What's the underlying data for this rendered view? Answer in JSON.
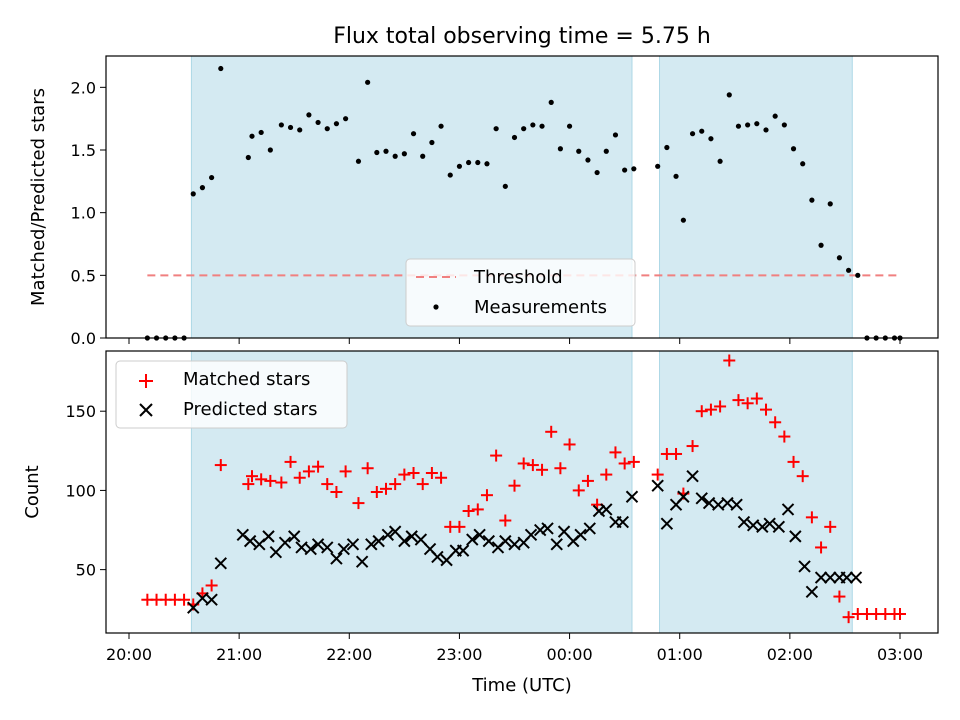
{
  "chart_data": [
    {
      "type": "scatter",
      "title": "Flux total observing time = 5.75 h",
      "ylabel": "Matched/Predicted stars",
      "xlabel": "",
      "ylim": [
        0,
        2.25
      ],
      "yticks": [
        "0.0",
        "0.5",
        "1.0",
        "1.5",
        "2.0"
      ],
      "grid": false,
      "legend_position": "bottom-center",
      "shaded_intervals": [
        [
          "20:34",
          "00:34"
        ],
        [
          "00:49",
          "02:34"
        ]
      ],
      "shade_color": "#add8e6",
      "series": [
        {
          "name": "Threshold",
          "style": "dashed-line",
          "color": "#f08080",
          "x": [
            "20:10",
            "03:00"
          ],
          "y": [
            0.5,
            0.5
          ]
        },
        {
          "name": "Measurements",
          "style": "dot",
          "color": "#000000",
          "x": [
            "20:10",
            "20:15",
            "20:20",
            "20:25",
            "20:30",
            "20:35",
            "20:40",
            "20:45",
            "20:50",
            "21:05",
            "21:07",
            "21:12",
            "21:17",
            "21:23",
            "21:28",
            "21:33",
            "21:38",
            "21:43",
            "21:48",
            "21:53",
            "21:58",
            "22:05",
            "22:10",
            "22:15",
            "22:20",
            "22:25",
            "22:30",
            "22:35",
            "22:40",
            "22:45",
            "22:50",
            "22:55",
            "23:00",
            "23:05",
            "23:10",
            "23:15",
            "23:20",
            "23:25",
            "23:30",
            "23:35",
            "23:40",
            "23:45",
            "23:50",
            "23:55",
            "00:00",
            "00:05",
            "00:10",
            "00:15",
            "00:20",
            "00:25",
            "00:30",
            "00:35",
            "00:48",
            "00:53",
            "00:58",
            "01:02",
            "01:07",
            "01:12",
            "01:17",
            "01:22",
            "01:27",
            "01:32",
            "01:37",
            "01:42",
            "01:47",
            "01:52",
            "01:57",
            "02:02",
            "02:07",
            "02:12",
            "02:17",
            "02:22",
            "02:27",
            "02:32",
            "02:37",
            "02:42",
            "02:47",
            "02:52",
            "02:57",
            "03:00"
          ],
          "y": [
            0,
            0,
            0,
            0,
            0,
            1.15,
            1.2,
            1.28,
            2.15,
            1.44,
            1.61,
            1.64,
            1.5,
            1.7,
            1.68,
            1.66,
            1.78,
            1.72,
            1.67,
            1.71,
            1.75,
            1.41,
            2.04,
            1.48,
            1.49,
            1.45,
            1.47,
            1.63,
            1.45,
            1.56,
            1.69,
            1.3,
            1.37,
            1.4,
            1.4,
            1.39,
            1.67,
            1.21,
            1.6,
            1.67,
            1.7,
            1.69,
            1.88,
            1.51,
            1.69,
            1.49,
            1.42,
            1.32,
            1.49,
            1.62,
            1.34,
            1.35,
            1.37,
            1.52,
            1.29,
            0.94,
            1.63,
            1.65,
            1.59,
            1.41,
            1.94,
            1.69,
            1.7,
            1.71,
            1.66,
            1.77,
            1.7,
            1.51,
            1.39,
            1.1,
            0.74,
            1.07,
            0.64,
            0.54,
            0.5,
            0,
            0,
            0,
            0,
            0
          ]
        }
      ]
    },
    {
      "type": "scatter",
      "title": "",
      "xlabel": "Time (UTC)",
      "ylabel": "Count",
      "ylim": [
        10,
        188
      ],
      "yticks": [
        "50",
        "100",
        "150"
      ],
      "xticks": [
        "20:00",
        "21:00",
        "22:00",
        "23:00",
        "00:00",
        "01:00",
        "02:00",
        "03:00"
      ],
      "grid": false,
      "legend_position": "top-left",
      "shaded_intervals": [
        [
          "20:34",
          "00:34"
        ],
        [
          "00:49",
          "02:34"
        ]
      ],
      "shade_color": "#add8e6",
      "series": [
        {
          "name": "Matched stars",
          "marker": "plus",
          "color": "#ff0000",
          "x": [
            "20:10",
            "20:15",
            "20:20",
            "20:25",
            "20:30",
            "20:35",
            "20:40",
            "20:45",
            "20:50",
            "21:05",
            "21:07",
            "21:12",
            "21:17",
            "21:23",
            "21:28",
            "21:33",
            "21:38",
            "21:43",
            "21:48",
            "21:53",
            "21:58",
            "22:05",
            "22:10",
            "22:15",
            "22:20",
            "22:25",
            "22:30",
            "22:35",
            "22:40",
            "22:45",
            "22:50",
            "22:55",
            "23:00",
            "23:05",
            "23:10",
            "23:15",
            "23:20",
            "23:25",
            "23:30",
            "23:35",
            "23:40",
            "23:45",
            "23:50",
            "23:55",
            "00:00",
            "00:05",
            "00:10",
            "00:15",
            "00:20",
            "00:25",
            "00:30",
            "00:35",
            "00:48",
            "00:53",
            "00:58",
            "01:02",
            "01:07",
            "01:12",
            "01:17",
            "01:22",
            "01:27",
            "01:32",
            "01:37",
            "01:42",
            "01:47",
            "01:52",
            "01:57",
            "02:02",
            "02:07",
            "02:12",
            "02:17",
            "02:22",
            "02:27",
            "02:32",
            "02:37",
            "02:42",
            "02:47",
            "02:52",
            "02:57",
            "03:00"
          ],
          "y": [
            31,
            31,
            31,
            31,
            31,
            28,
            35,
            40,
            116,
            104,
            109,
            107,
            106,
            105,
            118,
            108,
            112,
            115,
            104,
            99,
            112,
            92,
            114,
            99,
            101,
            104,
            110,
            111,
            104,
            111,
            108,
            77,
            77,
            87,
            88,
            97,
            122,
            81,
            103,
            117,
            116,
            113,
            137,
            114,
            129,
            100,
            106,
            91,
            110,
            124,
            117,
            118,
            110,
            123,
            123,
            98,
            128,
            150,
            151,
            153,
            182,
            157,
            155,
            158,
            151,
            143,
            134,
            118,
            109,
            83,
            64,
            77,
            33,
            20,
            22,
            22,
            22,
            22,
            22,
            22
          ]
        },
        {
          "name": "Predicted stars",
          "marker": "x",
          "color": "#000000",
          "x": [
            "20:35",
            "20:40",
            "20:45",
            "20:50",
            "21:02",
            "21:06",
            "21:11",
            "21:16",
            "21:20",
            "21:25",
            "21:30",
            "21:34",
            "21:39",
            "21:43",
            "21:48",
            "21:53",
            "21:57",
            "22:02",
            "22:07",
            "22:12",
            "22:16",
            "22:21",
            "22:25",
            "22:30",
            "22:34",
            "22:39",
            "22:44",
            "22:48",
            "22:53",
            "22:58",
            "23:02",
            "23:07",
            "23:11",
            "23:16",
            "23:21",
            "23:25",
            "23:30",
            "23:35",
            "23:39",
            "23:44",
            "23:48",
            "23:53",
            "23:57",
            "00:02",
            "00:06",
            "00:11",
            "00:16",
            "00:20",
            "00:25",
            "00:29",
            "00:34",
            "00:48",
            "00:53",
            "00:58",
            "01:02",
            "01:07",
            "01:12",
            "01:16",
            "01:21",
            "01:26",
            "01:31",
            "01:35",
            "01:40",
            "01:45",
            "01:49",
            "01:54",
            "01:59",
            "02:03",
            "02:08",
            "02:12",
            "02:17",
            "02:22",
            "02:27",
            "02:31",
            "02:36"
          ],
          "y": [
            26,
            32,
            31,
            54,
            72,
            68,
            66,
            71,
            61,
            67,
            71,
            64,
            63,
            66,
            64,
            57,
            63,
            66,
            55,
            66,
            68,
            72,
            74,
            68,
            71,
            69,
            63,
            58,
            56,
            62,
            62,
            69,
            72,
            68,
            64,
            68,
            66,
            67,
            72,
            75,
            76,
            66,
            74,
            68,
            72,
            76,
            87,
            88,
            80,
            80,
            96,
            103,
            79,
            91,
            96,
            109,
            95,
            92,
            91,
            92,
            91,
            80,
            78,
            77,
            79,
            77,
            88,
            71,
            52,
            36,
            45,
            45,
            45,
            45,
            45
          ]
        }
      ]
    }
  ]
}
